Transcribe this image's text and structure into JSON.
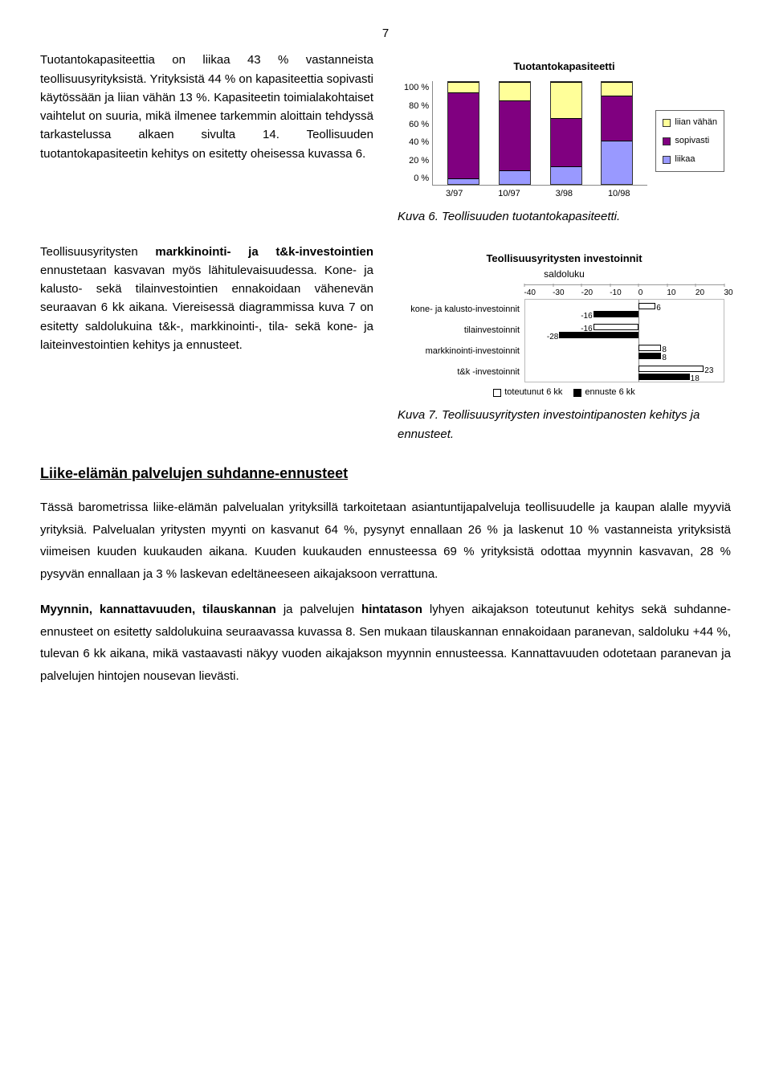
{
  "page_number": "7",
  "para1": "Tuotantokapasiteettia on liikaa 43 % vastanneista teollisuusyrityksistä. Yrityksistä 44 % on kapasiteettia sopivasti käytössään ja liian vähän 13 %. Kapasiteetin toimialakohtaiset vaihtelut on suuria, mikä ilmenee tarkemmin aloittain tehdyssä tarkastelussa alkaen sivulta 14. Teollisuuden tuotantokapasiteetin kehitys on esitetty oheisessa kuvassa 6.",
  "para2_a": "Teollisuusyritysten ",
  "para2_b": "markkinointi- ja t&k-investointien",
  "para2_c": " ennustetaan kasvavan myös lähitulevaisuudessa. Kone- ja kalusto- sekä tilainvestointien ennakoidaan vähenevän seuraavan 6 kk aikana. Viereisessä diagrammissa kuva 7 on esitetty saldolukuina t&k-, markkinointi-, tila- sekä kone- ja laiteinvestointien kehitys ja ennusteet.",
  "chart1": {
    "type": "stacked-bar",
    "title": "Tuotantokapasiteetti",
    "categories": [
      "3/97",
      "10/97",
      "3/98",
      "10/98"
    ],
    "series": [
      {
        "name": "liian vähän",
        "color": "#ffff99"
      },
      {
        "name": "sopivasti",
        "color": "#800080"
      },
      {
        "name": "liikaa",
        "color": "#9999ff"
      }
    ],
    "values": [
      {
        "liian_vahan": 10,
        "sopivasti": 84,
        "liikaa": 6
      },
      {
        "liian_vahan": 18,
        "sopivasti": 68,
        "liikaa": 14
      },
      {
        "liian_vahan": 35,
        "sopivasti": 47,
        "liikaa": 18
      },
      {
        "liian_vahan": 13,
        "sopivasti": 44,
        "liikaa": 43
      }
    ],
    "y_ticks": [
      "100 %",
      "80 %",
      "60 %",
      "40 %",
      "20 %",
      "0 %"
    ],
    "caption_label": "Kuva 6.",
    "caption_text": " Teollisuuden tuotantokapasiteetti."
  },
  "chart2": {
    "type": "horizontal-bar",
    "title": "Teollisuusyritysten investoinnit",
    "subtitle": "saldoluku",
    "xmin": -40,
    "xmax": 30,
    "x_ticks": [
      -40,
      -30,
      -20,
      -10,
      0,
      10,
      20,
      30
    ],
    "rows": [
      {
        "label": "kone- ja kalusto-investoinnit",
        "toteutunut": 6,
        "ennuste": -16
      },
      {
        "label": "tilainvestoinnit",
        "toteutunut": -16,
        "ennuste": -28
      },
      {
        "label": "markkinointi-investoinnit",
        "toteutunut": 8,
        "ennuste": 8
      },
      {
        "label": "t&k -investoinnit",
        "toteutunut": 23,
        "ennuste": 18
      }
    ],
    "series": [
      {
        "name": "toteutunut 6 kk",
        "color": "#ffffff",
        "border": "#000"
      },
      {
        "name": "ennuste 6 kk",
        "color": "#000000",
        "border": "#000"
      }
    ],
    "caption_label": "Kuva 7.",
    "caption_text": " Teollisuusyritysten investointipanosten kehitys ja ennusteet."
  },
  "section_heading": "Liike-elämän palvelujen suhdanne-ennusteet",
  "para3": "Tässä barometrissa liike-elämän palvelualan yrityksillä tarkoitetaan asiantuntijapalveluja teollisuudelle ja kaupan alalle myyviä yrityksiä. Palvelualan yritysten myynti on kasvanut 64 %, pysynyt ennallaan 26 % ja laskenut 10 % vastanneista yrityksistä viimeisen kuuden kuukauden aikana. Kuuden kuukauden ennusteessa 69 % yrityksistä odottaa myynnin kasvavan, 28 % pysyvän ennallaan ja 3 % laskevan edeltäneeseen aikajaksoon verrattuna.",
  "para4_a": "Myynnin, kannattavuuden, tilauskannan",
  "para4_b": " ja palvelujen ",
  "para4_c": "hintatason",
  "para4_d": " lyhyen aikajakson toteutunut kehitys sekä suhdanne-ennusteet on esitetty saldolukuina seuraavassa kuvassa 8. Sen mukaan tilauskannan ennakoidaan paranevan, saldoluku +44 %, tulevan 6 kk aikana, mikä vastaavasti näkyy vuoden aikajakson myynnin ennusteessa. Kannattavuuden odotetaan paranevan ja palvelujen hintojen nousevan lievästi."
}
